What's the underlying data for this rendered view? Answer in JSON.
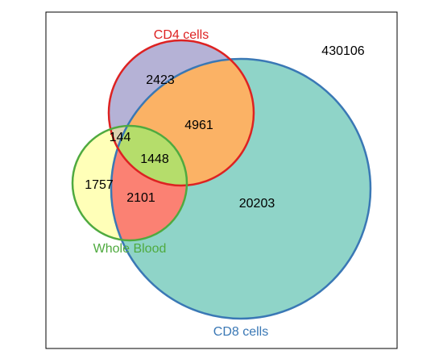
{
  "sets": {
    "cd4": {
      "label": "CD4 cells",
      "stroke": "#dd2222",
      "fill": "#b5b2d6",
      "label_color": "#dd2222"
    },
    "cd8": {
      "label": "CD8 cells",
      "stroke": "#3a78b5",
      "fill": "#8fd4c8",
      "label_color": "#3a78b5"
    },
    "whole_blood": {
      "label": "Whole Blood",
      "stroke": "#4faa3f",
      "fill": "#ffffb8",
      "label_color": "#4faa3f"
    }
  },
  "regions": {
    "outside": {
      "count": "430106"
    },
    "cd4_only": {
      "count": "2423",
      "fill": "#b5b2d6"
    },
    "cd4_cd8": {
      "count": "4961",
      "fill": "#fbb265"
    },
    "cd4_wb": {
      "count": "144",
      "fill": "#dcd3b0"
    },
    "all_three": {
      "count": "1448",
      "fill": "#b5dd6b"
    },
    "wb_only": {
      "count": "1757",
      "fill": "#ffffb8"
    },
    "wb_cd8": {
      "count": "2101",
      "fill": "#fb8173"
    },
    "cd8_only": {
      "count": "20203",
      "fill": "#8fd4c8"
    }
  },
  "frame": {
    "stroke": "#000000"
  }
}
